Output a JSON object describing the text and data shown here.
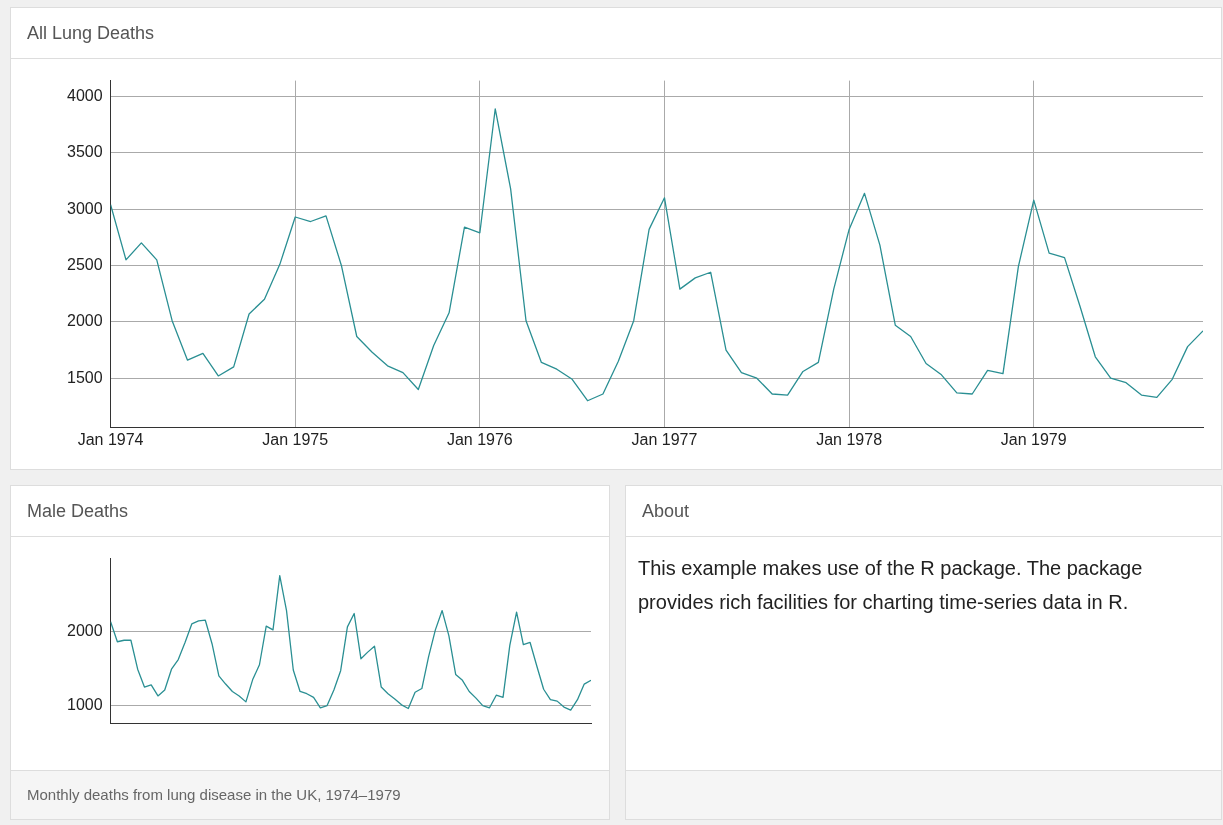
{
  "chart_data": [
    {
      "type": "line",
      "title": "All Lung Deaths",
      "x": [
        "1974-01",
        "1974-02",
        "1974-03",
        "1974-04",
        "1974-05",
        "1974-06",
        "1974-07",
        "1974-08",
        "1974-09",
        "1974-10",
        "1974-11",
        "1974-12",
        "1975-01",
        "1975-02",
        "1975-03",
        "1975-04",
        "1975-05",
        "1975-06",
        "1975-07",
        "1975-08",
        "1975-09",
        "1975-10",
        "1975-11",
        "1975-12",
        "1976-01",
        "1976-02",
        "1976-03",
        "1976-04",
        "1976-05",
        "1976-06",
        "1976-07",
        "1976-08",
        "1976-09",
        "1976-10",
        "1976-11",
        "1976-12",
        "1977-01",
        "1977-02",
        "1977-03",
        "1977-04",
        "1977-05",
        "1977-06",
        "1977-07",
        "1977-08",
        "1977-09",
        "1977-10",
        "1977-11",
        "1977-12",
        "1978-01",
        "1978-02",
        "1978-03",
        "1978-04",
        "1978-05",
        "1978-06",
        "1978-07",
        "1978-08",
        "1978-09",
        "1978-10",
        "1978-11",
        "1978-12",
        "1979-01",
        "1979-02",
        "1979-03",
        "1979-04",
        "1979-05",
        "1979-06",
        "1979-07",
        "1979-08",
        "1979-09",
        "1979-10",
        "1979-11",
        "1979-12"
      ],
      "values": [
        3040,
        2550,
        2700,
        2550,
        2010,
        1660,
        1720,
        1520,
        1600,
        2070,
        2200,
        2510,
        2930,
        2890,
        2940,
        2500,
        1870,
        1730,
        1610,
        1550,
        1400,
        1790,
        2080,
        2840,
        2790,
        3890,
        3180,
        2010,
        1640,
        1580,
        1490,
        1300,
        1360,
        1650,
        2010,
        2820,
        3100,
        2290,
        2390,
        2440,
        1750,
        1550,
        1500,
        1360,
        1350,
        1560,
        1640,
        2290,
        2820,
        3140,
        2680,
        1970,
        1870,
        1630,
        1530,
        1370,
        1360,
        1570,
        1540,
        2490,
        3080,
        2610,
        2570,
        2140,
        1690,
        1500,
        1460,
        1350,
        1330,
        1490,
        1780,
        1920
      ],
      "color": "#2a8f93",
      "xlim": [
        "1974-01",
        "1979-12"
      ],
      "xticks": [
        {
          "value": "1974-01",
          "label": "Jan 1974"
        },
        {
          "value": "1975-01",
          "label": "Jan 1975"
        },
        {
          "value": "1976-01",
          "label": "Jan 1976"
        },
        {
          "value": "1977-01",
          "label": "Jan 1977"
        },
        {
          "value": "1978-01",
          "label": "Jan 1978"
        },
        {
          "value": "1979-01",
          "label": "Jan 1979"
        }
      ],
      "ylim": [
        1060,
        4140
      ],
      "yticks": [
        1500,
        2000,
        2500,
        3000,
        3500,
        4000
      ],
      "grid": true,
      "marker": "none"
    },
    {
      "type": "line",
      "title": "Male Deaths",
      "categories": [
        null,
        null,
        null,
        null,
        null,
        null,
        null,
        null,
        null,
        null,
        null,
        null,
        null,
        null,
        null,
        null,
        null,
        null,
        null,
        null,
        null,
        null,
        null,
        null,
        null,
        null,
        null,
        null,
        null,
        null,
        null,
        null,
        null,
        null,
        null,
        null,
        null,
        null,
        null,
        null,
        null,
        null,
        null,
        null,
        null,
        null,
        null,
        null,
        null,
        null,
        null,
        null,
        null,
        null,
        null,
        null,
        null,
        null,
        null,
        null,
        null,
        null,
        null,
        null,
        null,
        null,
        null,
        null,
        null,
        null,
        null,
        null
      ],
      "values": [
        2130,
        1860,
        1880,
        1880,
        1490,
        1250,
        1280,
        1130,
        1210,
        1490,
        1620,
        1850,
        2100,
        2140,
        2150,
        1830,
        1400,
        1290,
        1190,
        1130,
        1050,
        1350,
        1550,
        2070,
        2020,
        2750,
        2280,
        1480,
        1190,
        1160,
        1110,
        970,
        1000,
        1210,
        1470,
        2060,
        2240,
        1630,
        1720,
        1800,
        1250,
        1160,
        1090,
        1010,
        960,
        1180,
        1230,
        1660,
        2020,
        2280,
        1940,
        1420,
        1340,
        1190,
        1100,
        1000,
        970,
        1140,
        1110,
        1810,
        2260,
        1820,
        1850,
        1530,
        1220,
        1080,
        1060,
        980,
        940,
        1080,
        1290,
        1340
      ],
      "color": "#2a8f93",
      "ylim": [
        760,
        2980
      ],
      "yticks": [
        1000,
        2000
      ],
      "grid": "y",
      "tick_labels": "y",
      "marker": "none",
      "annotations": [
        "Monthly deaths from lung disease in the UK, 1974–1979"
      ]
    },
    {
      "type": "other",
      "title": "About",
      "annotations": [
        "This example makes use of the R package. The package provides rich facilities for charting time-series data in R."
      ]
    }
  ]
}
